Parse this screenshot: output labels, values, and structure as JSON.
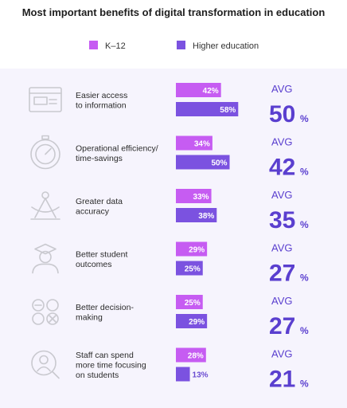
{
  "chart_data": {
    "type": "bar",
    "title": "Most important benefits of digital transformation in education",
    "legend_position": "top",
    "series": [
      {
        "name": "K–12",
        "color": "#c65cf2",
        "values": [
          42,
          34,
          33,
          29,
          25,
          28
        ]
      },
      {
        "name": "Higher education",
        "color": "#7b52e0",
        "values": [
          58,
          50,
          38,
          25,
          29,
          13
        ]
      }
    ],
    "categories": [
      [
        "Easier access",
        "to information"
      ],
      [
        "Operational efficiency/",
        "time-savings"
      ],
      [
        "Greater data",
        "accuracy"
      ],
      [
        "Better student",
        "outcomes"
      ],
      [
        "Better decision-",
        "making"
      ],
      [
        "Staff can spend",
        "more time focusing",
        "on students"
      ]
    ],
    "icons": [
      "browser-window-icon",
      "stopwatch-gauge-icon",
      "compass-icon",
      "graduate-icon",
      "tic-tac-toe-icon",
      "person-search-icon"
    ],
    "avg_label": "AVG",
    "averages": [
      50,
      42,
      35,
      27,
      27,
      21
    ],
    "value_suffix": "%",
    "band_color": "#f6f4fd",
    "accent_color": "#5a3fcf"
  }
}
